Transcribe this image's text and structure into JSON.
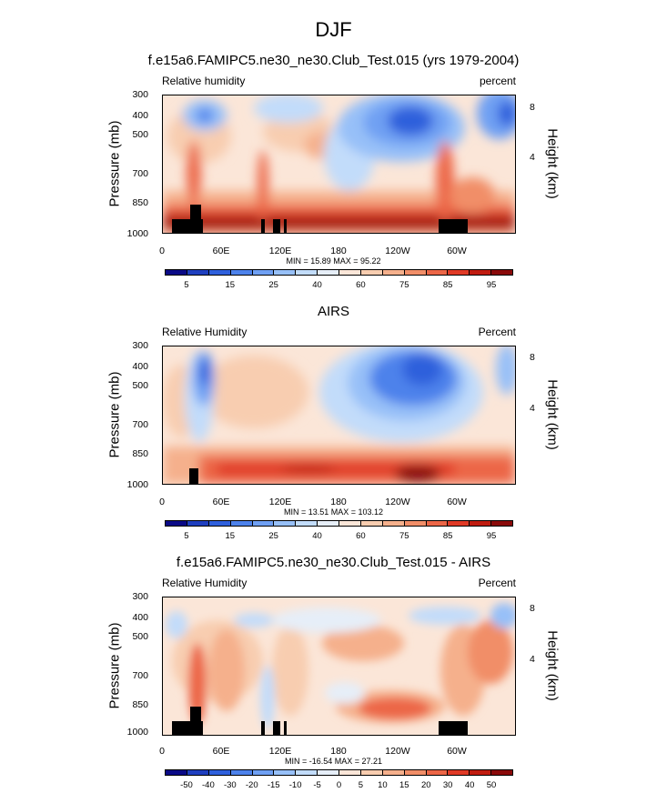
{
  "title": "DJF",
  "colors": {
    "rh": [
      "#0a0a86",
      "#1f3fbf",
      "#2f60dc",
      "#4d82eb",
      "#6fa0f3",
      "#97c0f8",
      "#c2dcfa",
      "#e6eef8",
      "#fbe6d8",
      "#f8cdb0",
      "#f5b08c",
      "#f18e68",
      "#ec6647",
      "#e03a26",
      "#c01c10",
      "#8a0a0a"
    ],
    "diff": [
      "#0a0a86",
      "#1f3fbf",
      "#2f60dc",
      "#4d82eb",
      "#6fa0f3",
      "#97c0f8",
      "#c2dcfa",
      "#e6eef8",
      "#fbe6d8",
      "#f8cdb0",
      "#f5b08c",
      "#f18e68",
      "#ec6647",
      "#e03a26",
      "#c01c10",
      "#8a0a0a"
    ]
  },
  "chart_data": [
    {
      "type": "heatmap",
      "title": "f.e15a6.FAMIPC5.ne30_ne30.Club_Test.015 (yrs 1979-2004)",
      "left_label": "Relative humidity",
      "right_label": "percent",
      "ylabel": "Pressure (mb)",
      "y2label": "Height (km)",
      "x_ticks": [
        "0",
        "60E",
        "120E",
        "180",
        "120W",
        "60W"
      ],
      "y_ticks": [
        "300",
        "400",
        "500",
        "700",
        "850",
        "1000"
      ],
      "y2_ticks": [
        "8",
        "4"
      ],
      "minmax": "MIN =  15.89   MAX =  95.22",
      "colorbar_labels": [
        "5",
        "15",
        "25",
        "40",
        "60",
        "75",
        "85",
        "95"
      ],
      "xlim": [
        0,
        360
      ],
      "ylim": [
        1000,
        300
      ],
      "y_scale": "log"
    },
    {
      "type": "heatmap",
      "title": "AIRS",
      "left_label": "Relative Humidity",
      "right_label": "Percent",
      "ylabel": "Pressure (mb)",
      "y2label": "Height (km)",
      "x_ticks": [
        "0",
        "60E",
        "120E",
        "180",
        "120W",
        "60W"
      ],
      "y_ticks": [
        "300",
        "400",
        "500",
        "700",
        "850",
        "1000"
      ],
      "y2_ticks": [
        "8",
        "4"
      ],
      "minmax": "MIN =  13.51   MAX = 103.12",
      "colorbar_labels": [
        "5",
        "15",
        "25",
        "40",
        "60",
        "75",
        "85",
        "95"
      ],
      "xlim": [
        0,
        360
      ],
      "ylim": [
        1000,
        300
      ],
      "y_scale": "log"
    },
    {
      "type": "heatmap",
      "title": "f.e15a6.FAMIPC5.ne30_ne30.Club_Test.015 - AIRS",
      "left_label": "Relative Humidity",
      "right_label": "Percent",
      "ylabel": "Pressure (mb)",
      "y2label": "Height (km)",
      "x_ticks": [
        "0",
        "60E",
        "120E",
        "180",
        "120W",
        "60W"
      ],
      "y_ticks": [
        "300",
        "400",
        "500",
        "700",
        "850",
        "1000"
      ],
      "y2_ticks": [
        "8",
        "4"
      ],
      "minmax": "MIN = -16.54   MAX =  27.21",
      "colorbar_labels": [
        "-50",
        "-40",
        "-30",
        "-20",
        "-15",
        "-10",
        "-5",
        "0",
        "5",
        "10",
        "15",
        "20",
        "30",
        "40",
        "50"
      ],
      "xlim": [
        0,
        360
      ],
      "ylim": [
        1000,
        300
      ],
      "y_scale": "log"
    }
  ]
}
